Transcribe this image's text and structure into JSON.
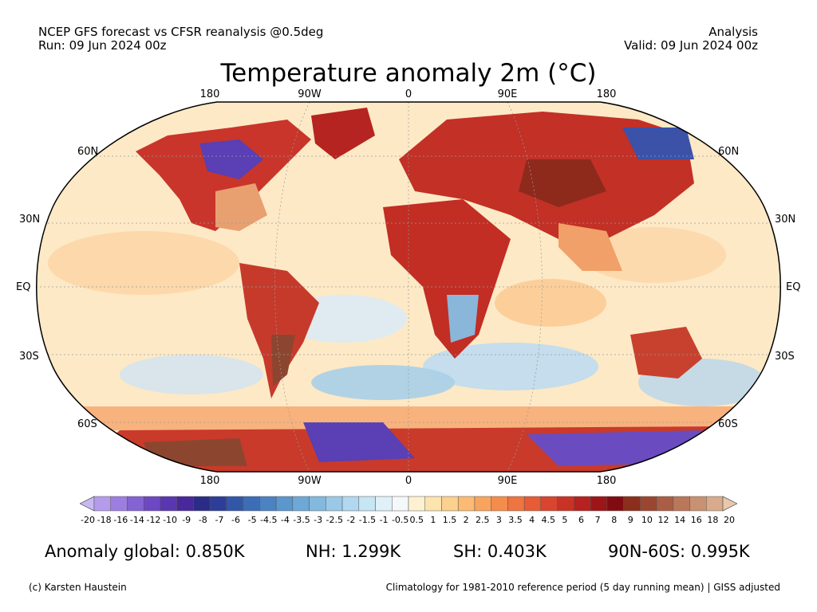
{
  "header": {
    "left_line1": "NCEP GFS forecast vs CFSR reanalysis @0.5deg",
    "left_line2": "Run: 09 Jun 2024 00z",
    "right_line1": "Analysis",
    "right_line2": "Valid: 09 Jun 2024 00z"
  },
  "title": "Temperature anomaly 2m (°C)",
  "map": {
    "projection": "Robinson",
    "lon_labels_top": [
      "180",
      "90W",
      "0",
      "90E",
      "180"
    ],
    "lon_labels_bottom": [
      "180",
      "90W",
      "0",
      "90E",
      "180"
    ],
    "lat_labels_left": [
      "60N",
      "30N",
      "EQ",
      "30S",
      "60S"
    ],
    "lat_labels_right": [
      "60N",
      "30N",
      "EQ",
      "30S",
      "60S"
    ],
    "ocean_color": "#fde9c6",
    "land_color": "#c9352a"
  },
  "colorbar": {
    "labels": [
      "-20",
      "-18",
      "-16",
      "-14",
      "-12",
      "-10",
      "-9",
      "-8",
      "-7",
      "-6",
      "-5",
      "-4.5",
      "-4",
      "-3.5",
      "-3",
      "-2.5",
      "-2",
      "-1.5",
      "-1",
      "-0.5",
      "0.5",
      "1",
      "1.5",
      "2",
      "2.5",
      "3",
      "3.5",
      "4",
      "4.5",
      "5",
      "6",
      "7",
      "8",
      "9",
      "10",
      "12",
      "14",
      "16",
      "18",
      "20"
    ],
    "colors": [
      "#c8b8f2",
      "#b59cea",
      "#9d7ee0",
      "#8563d2",
      "#6d48c2",
      "#5a36b0",
      "#48289a",
      "#2b2c86",
      "#2d3e98",
      "#3357a8",
      "#3d6db6",
      "#4b82c1",
      "#5b96cc",
      "#6ea8d6",
      "#83b9df",
      "#9ac9e7",
      "#b1d8ee",
      "#c8e5f4",
      "#dff0f9",
      "#f4f8fb",
      "#fdf1d2",
      "#fde3ae",
      "#fcd08e",
      "#fbbb73",
      "#f8a45d",
      "#f48d4c",
      "#ee7440",
      "#e55c36",
      "#d9452e",
      "#c93325",
      "#b5221f",
      "#9c1519",
      "#800c12",
      "#8c2e1c",
      "#9b4630",
      "#aa5e45",
      "#b9775b",
      "#c89172",
      "#d8ab8c",
      "#e8c8ab"
    ]
  },
  "stats": {
    "global": "Anomaly global: 0.850K",
    "nh": "NH: 1.299K",
    "sh": "SH: 0.403K",
    "arctic": "90N-60S: 0.995K"
  },
  "footer": {
    "credit": "(c) Karsten Haustein",
    "climatology": "Climatology for 1981-2010 reference period (5 day running mean) | GISS adjusted"
  }
}
